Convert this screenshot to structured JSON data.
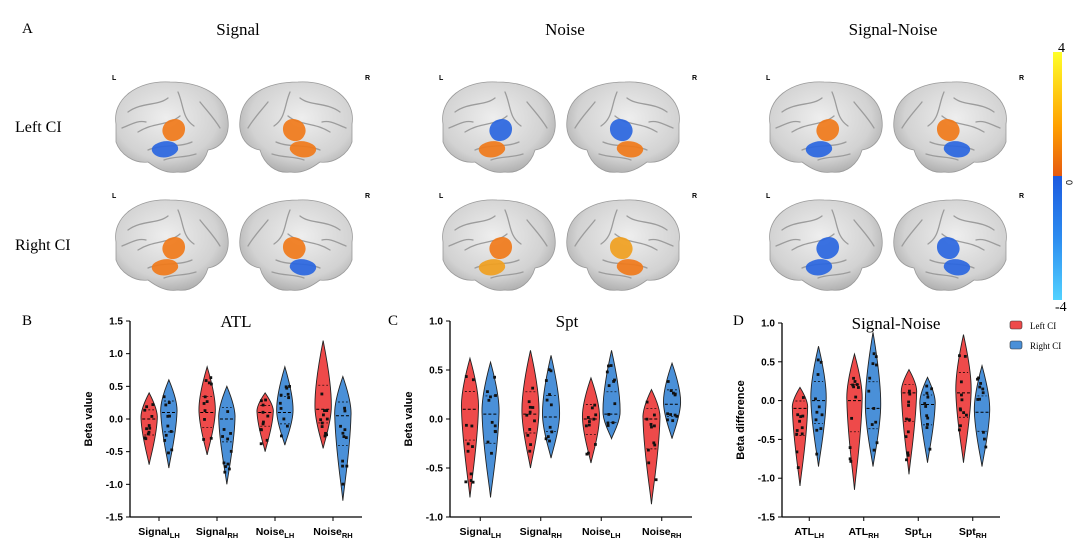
{
  "panel_a": {
    "label": "A",
    "columns": [
      "Signal",
      "Noise",
      "Signal-Noise"
    ],
    "rows": [
      "Left CI",
      "Right CI"
    ],
    "hemi_left": "L",
    "hemi_right": "R",
    "colorbar": {
      "max": "4",
      "mid": "0",
      "min": "-4",
      "colors": [
        "#ffff00",
        "#ff8c00",
        "#e8600f",
        "#1f5fe0",
        "#2a8ff0",
        "#4fc8ff"
      ]
    }
  },
  "colors": {
    "left_ci": "#ee4a4a",
    "right_ci": "#4a90d8",
    "brain": "#d6d6d6",
    "activation_pos": "#f07a1a",
    "activation_neg": "#2a66e0"
  },
  "legend": {
    "left_ci": "Left CI",
    "right_ci": "Right CI"
  },
  "chart_data": [
    {
      "panel": "B",
      "type": "violin",
      "title": "ATL",
      "ylabel": "Beta value",
      "ylim": [
        -1.5,
        1.5
      ],
      "yticks": [
        "-1.5",
        "-1.0",
        "-0.5",
        "0.0",
        "0.5",
        "1.0",
        "1.5"
      ],
      "categories": [
        {
          "base": "Signal",
          "sub": "LH"
        },
        {
          "base": "Signal",
          "sub": "RH"
        },
        {
          "base": "Noise",
          "sub": "LH"
        },
        {
          "base": "Noise",
          "sub": "RH"
        }
      ],
      "series": [
        {
          "name": "Left CI",
          "ranges": [
            [
              -0.7,
              0.4
            ],
            [
              -0.55,
              0.8
            ],
            [
              -0.5,
              0.4
            ],
            [
              -0.45,
              1.2
            ]
          ],
          "medians": [
            0.0,
            0.1,
            0.1,
            0.15
          ]
        },
        {
          "name": "Right CI",
          "ranges": [
            [
              -0.75,
              0.6
            ],
            [
              -1.0,
              0.5
            ],
            [
              -0.4,
              0.8
            ],
            [
              -1.25,
              0.65
            ]
          ],
          "medians": [
            0.1,
            0.0,
            0.1,
            0.05
          ]
        }
      ]
    },
    {
      "panel": "C",
      "type": "violin",
      "title": "Spt",
      "ylabel": "Beta value",
      "ylim": [
        -1.0,
        1.0
      ],
      "yticks": [
        "-1.0",
        "-0.5",
        "0.0",
        "0.5",
        "1.0"
      ],
      "categories": [
        {
          "base": "Signal",
          "sub": "LH"
        },
        {
          "base": "Signal",
          "sub": "RH"
        },
        {
          "base": "Noise",
          "sub": "LH"
        },
        {
          "base": "Noise",
          "sub": "RH"
        }
      ],
      "series": [
        {
          "name": "Left CI",
          "ranges": [
            [
              -0.8,
              0.62
            ],
            [
              -0.5,
              0.7
            ],
            [
              -0.45,
              0.42
            ],
            [
              -0.87,
              0.3
            ]
          ],
          "medians": [
            0.1,
            0.05,
            0.0,
            0.0
          ]
        },
        {
          "name": "Right CI",
          "ranges": [
            [
              -0.8,
              0.58
            ],
            [
              -0.4,
              0.65
            ],
            [
              -0.2,
              0.7
            ],
            [
              -0.2,
              0.57
            ]
          ],
          "medians": [
            0.05,
            0.02,
            0.05,
            0.15
          ]
        }
      ]
    },
    {
      "panel": "D",
      "type": "violin",
      "title": "Signal-Noise",
      "ylabel": "Beta difference",
      "ylim": [
        -1.5,
        1.0
      ],
      "yticks": [
        "-1.5",
        "-1.0",
        "-0.5",
        "0.0",
        "0.5",
        "1.0"
      ],
      "categories": [
        {
          "base": "ATL",
          "sub": "LH"
        },
        {
          "base": "ATL",
          "sub": "RH"
        },
        {
          "base": "Spt",
          "sub": "LH"
        },
        {
          "base": "Spt",
          "sub": "RH"
        }
      ],
      "series": [
        {
          "name": "Left CI",
          "ranges": [
            [
              -1.1,
              0.17
            ],
            [
              -1.15,
              0.6
            ],
            [
              -0.95,
              0.4
            ],
            [
              -0.8,
              0.85
            ]
          ],
          "medians": [
            -0.1,
            0.0,
            0.1,
            0.1
          ]
        },
        {
          "name": "Right CI",
          "ranges": [
            [
              -0.85,
              0.7
            ],
            [
              -0.85,
              0.88
            ],
            [
              -0.8,
              0.3
            ],
            [
              -0.85,
              0.45
            ]
          ],
          "medians": [
            0.0,
            -0.1,
            -0.05,
            -0.15
          ]
        }
      ]
    }
  ]
}
